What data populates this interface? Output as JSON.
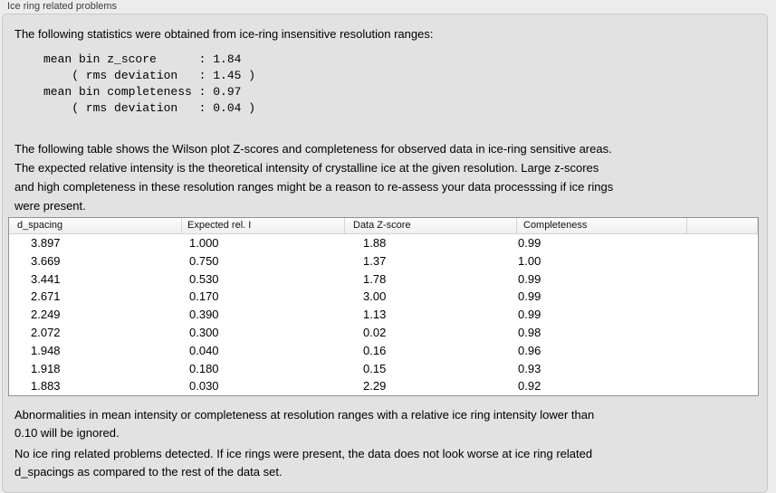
{
  "panel": {
    "title": "Ice ring related problems",
    "intro": "The following statistics were obtained from ice-ring insensitive resolution ranges:",
    "stats_text": "mean bin z_score      : 1.84\n    ( rms deviation   : 1.45 )\nmean bin completeness : 0.97\n    ( rms deviation   : 0.04 )",
    "stats": {
      "mean_bin_z_score": "1.84",
      "z_score_rms_deviation": "1.45",
      "mean_bin_completeness": "0.97",
      "completeness_rms_deviation": "0.04"
    },
    "table_description": "The following table shows the Wilson plot Z-scores and completeness for observed data in ice-ring sensitive areas.\nThe expected relative intensity is the theoretical intensity of crystalline ice at the given resolution. Large z-scores\nand high completeness in these resolution ranges might be a reason to re-assess your data processsing if ice rings\nwere present.",
    "ignore_note": "Abnormalities in mean intensity or completeness at resolution ranges with a relative ice ring intensity lower than\n0.10 will be ignored.",
    "conclusion": "No ice ring related problems detected. If ice rings were present, the data does not look worse at ice ring related\nd_spacings as compared to the rest of the data set."
  },
  "table": {
    "columns": [
      "d_spacing",
      "Expected rel. I",
      "Data Z-score",
      "Completeness",
      ""
    ],
    "rows": [
      [
        "3.897",
        "1.000",
        "1.88",
        "0.99"
      ],
      [
        "3.669",
        "0.750",
        "1.37",
        "1.00"
      ],
      [
        "3.441",
        "0.530",
        "1.78",
        "0.99"
      ],
      [
        "2.671",
        "0.170",
        "3.00",
        "0.99"
      ],
      [
        "2.249",
        "0.390",
        "1.13",
        "0.99"
      ],
      [
        "2.072",
        "0.300",
        "0.02",
        "0.98"
      ],
      [
        "1.948",
        "0.040",
        "0.16",
        "0.96"
      ],
      [
        "1.918",
        "0.180",
        "0.15",
        "0.93"
      ],
      [
        "1.883",
        "0.030",
        "2.29",
        "0.92"
      ]
    ]
  },
  "colors": {
    "page_bg": "#ececec",
    "box_bg": "#e2e2e2",
    "table_border": "#919191",
    "header_separator": "#d6d6d6"
  }
}
